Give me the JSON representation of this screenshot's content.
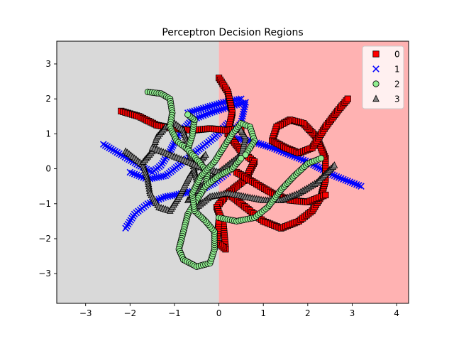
{
  "chart_data": {
    "type": "scatter",
    "title": "Perceptron Decision Regions",
    "xlabel": "",
    "ylabel": "",
    "xlim": [
      -3.65,
      4.27
    ],
    "ylim": [
      -3.85,
      3.65
    ],
    "xticks": [
      -3,
      -2,
      -1,
      0,
      1,
      2,
      3,
      4
    ],
    "yticks": [
      -3,
      -2,
      -1,
      0,
      1,
      2,
      3
    ],
    "decision_boundary_x": 0,
    "regions": [
      {
        "side": "left",
        "color": "#d9d9d9"
      },
      {
        "side": "right",
        "color": "#ffb2b2"
      }
    ],
    "legend_position": "top-right",
    "series": [
      {
        "name": "0",
        "marker": "square",
        "color": "#ff0000",
        "paths": [
          [
            [
              0.0,
              2.6
            ],
            [
              0.2,
              2.2
            ],
            [
              0.3,
              1.6
            ],
            [
              0.2,
              1.0
            ],
            [
              0.5,
              0.5
            ],
            [
              0.8,
              0.2
            ],
            [
              0.6,
              -0.3
            ],
            [
              0.2,
              -0.7
            ],
            [
              -0.05,
              -1.1
            ],
            [
              0.1,
              -1.6
            ],
            [
              0.15,
              -2.3
            ],
            [
              -0.05,
              -2.1
            ],
            [
              0.0,
              -1.5
            ]
          ],
          [
            [
              -2.2,
              1.65
            ],
            [
              -1.8,
              1.5
            ],
            [
              -1.4,
              1.25
            ],
            [
              -1.0,
              1.15
            ],
            [
              -0.6,
              1.1
            ],
            [
              -0.2,
              1.15
            ],
            [
              0.2,
              1.1
            ],
            [
              0.5,
              1.15
            ]
          ],
          [
            [
              0.3,
              -0.8
            ],
            [
              0.7,
              -1.2
            ],
            [
              1.0,
              -1.5
            ],
            [
              1.4,
              -1.7
            ],
            [
              1.8,
              -1.5
            ],
            [
              2.1,
              -1.2
            ],
            [
              2.3,
              -0.8
            ],
            [
              2.4,
              -0.3
            ],
            [
              2.4,
              0.3
            ],
            [
              2.2,
              0.9
            ],
            [
              1.9,
              1.3
            ],
            [
              1.6,
              1.4
            ],
            [
              1.3,
              1.2
            ],
            [
              1.2,
              0.8
            ]
          ],
          [
            [
              1.2,
              0.8
            ],
            [
              1.5,
              0.6
            ],
            [
              1.8,
              0.45
            ],
            [
              2.1,
              0.6
            ],
            [
              2.4,
              1.2
            ],
            [
              2.7,
              1.7
            ],
            [
              2.9,
              2.0
            ]
          ],
          [
            [
              0.4,
              -0.1
            ],
            [
              0.8,
              -0.4
            ],
            [
              1.2,
              -0.7
            ],
            [
              1.6,
              -0.9
            ],
            [
              2.0,
              -0.95
            ],
            [
              2.4,
              -0.75
            ]
          ]
        ]
      },
      {
        "name": "1",
        "marker": "x",
        "color": "#0000ff",
        "paths": [
          [
            [
              -2.6,
              0.7
            ],
            [
              -2.2,
              0.4
            ],
            [
              -1.8,
              0.1
            ],
            [
              -1.5,
              -0.1
            ],
            [
              -1.3,
              0.1
            ],
            [
              -1.1,
              0.5
            ],
            [
              -0.9,
              1.0
            ],
            [
              -0.6,
              1.4
            ],
            [
              -0.2,
              1.6
            ],
            [
              0.3,
              1.8
            ],
            [
              0.6,
              1.9
            ],
            [
              0.5,
              1.3
            ],
            [
              0.2,
              0.9
            ]
          ],
          [
            [
              0.2,
              0.9
            ],
            [
              0.7,
              0.8
            ],
            [
              1.2,
              0.6
            ],
            [
              1.6,
              0.4
            ],
            [
              2.0,
              0.2
            ],
            [
              2.3,
              0.0
            ],
            [
              2.6,
              -0.2
            ],
            [
              2.9,
              -0.35
            ],
            [
              3.2,
              -0.5
            ]
          ],
          [
            [
              -2.1,
              -1.7
            ],
            [
              -1.9,
              -1.3
            ],
            [
              -1.6,
              -1.0
            ],
            [
              -1.2,
              -0.8
            ],
            [
              -0.8,
              -0.7
            ],
            [
              -0.4,
              -0.6
            ],
            [
              -0.1,
              -0.4
            ],
            [
              0.2,
              -0.1
            ]
          ],
          [
            [
              -2.0,
              -0.1
            ],
            [
              -1.6,
              -0.3
            ],
            [
              -1.2,
              -0.2
            ],
            [
              -0.8,
              0.2
            ],
            [
              -0.4,
              0.6
            ],
            [
              -0.1,
              0.9
            ],
            [
              0.2,
              1.3
            ]
          ],
          [
            [
              -0.7,
              1.6
            ],
            [
              -0.3,
              1.75
            ],
            [
              0.1,
              1.9
            ],
            [
              0.5,
              2.0
            ]
          ]
        ]
      },
      {
        "name": "2",
        "marker": "circle",
        "color": "#90ee90",
        "paths": [
          [
            [
              -1.6,
              2.2
            ],
            [
              -1.3,
              2.15
            ],
            [
              -1.1,
              2.0
            ],
            [
              -1.05,
              1.6
            ],
            [
              -1.1,
              1.2
            ],
            [
              -0.95,
              0.8
            ],
            [
              -0.7,
              0.55
            ],
            [
              -0.6,
              0.95
            ],
            [
              -0.55,
              1.4
            ],
            [
              -0.7,
              1.55
            ]
          ],
          [
            [
              -0.7,
              0.55
            ],
            [
              -0.45,
              0.2
            ],
            [
              -0.25,
              -0.1
            ],
            [
              -0.3,
              -0.5
            ],
            [
              -0.5,
              -0.9
            ],
            [
              -0.7,
              -1.3
            ],
            [
              -0.8,
              -1.8
            ],
            [
              -0.9,
              -2.3
            ],
            [
              -0.8,
              -2.6
            ],
            [
              -0.5,
              -2.8
            ],
            [
              -0.2,
              -2.7
            ],
            [
              -0.1,
              -2.3
            ],
            [
              -0.1,
              -1.8
            ]
          ],
          [
            [
              -0.1,
              -1.8
            ],
            [
              -0.3,
              -1.5
            ],
            [
              -0.55,
              -1.2
            ],
            [
              -0.6,
              -0.7
            ],
            [
              -0.4,
              -0.2
            ],
            [
              -0.1,
              0.2
            ],
            [
              0.1,
              0.6
            ],
            [
              0.3,
              1.0
            ],
            [
              0.5,
              1.3
            ],
            [
              0.7,
              1.2
            ],
            [
              0.8,
              0.8
            ],
            [
              0.6,
              0.4
            ]
          ],
          [
            [
              0.0,
              -1.4
            ],
            [
              0.4,
              -1.5
            ],
            [
              0.8,
              -1.4
            ],
            [
              1.1,
              -1.1
            ],
            [
              1.4,
              -0.6
            ],
            [
              1.7,
              -0.2
            ],
            [
              2.0,
              0.15
            ],
            [
              2.3,
              0.3
            ]
          ],
          [
            [
              -0.3,
              -0.5
            ],
            [
              0.0,
              -0.2
            ],
            [
              0.3,
              0.0
            ],
            [
              0.5,
              0.3
            ]
          ]
        ]
      },
      {
        "name": "3",
        "marker": "triangle",
        "color": "#808080",
        "paths": [
          [
            [
              -2.1,
              0.5
            ],
            [
              -1.9,
              0.3
            ],
            [
              -1.7,
              0.1
            ],
            [
              -1.6,
              -0.3
            ],
            [
              -1.55,
              -0.7
            ],
            [
              -1.35,
              -1.1
            ],
            [
              -1.1,
              -1.2
            ],
            [
              -0.9,
              -0.8
            ],
            [
              -0.7,
              -0.3
            ],
            [
              -0.5,
              0.1
            ],
            [
              -0.3,
              0.4
            ]
          ],
          [
            [
              -1.7,
              0.2
            ],
            [
              -1.5,
              0.5
            ],
            [
              -1.4,
              0.9
            ],
            [
              -1.2,
              1.2
            ],
            [
              -1.0,
              1.3
            ],
            [
              -0.8,
              1.1
            ],
            [
              -0.7,
              0.7
            ],
            [
              -0.6,
              0.2
            ],
            [
              -0.5,
              -0.3
            ],
            [
              -0.45,
              -0.7
            ],
            [
              -0.5,
              -1.1
            ]
          ],
          [
            [
              -0.5,
              -1.1
            ],
            [
              -0.2,
              -0.8
            ],
            [
              0.2,
              -0.7
            ],
            [
              0.6,
              -0.8
            ],
            [
              1.0,
              -0.9
            ],
            [
              1.4,
              -0.9
            ],
            [
              1.8,
              -0.7
            ],
            [
              2.2,
              -0.4
            ],
            [
              2.6,
              0.1
            ]
          ],
          [
            [
              -0.7,
              -0.9
            ],
            [
              -0.4,
              -0.5
            ],
            [
              -0.1,
              -0.2
            ],
            [
              0.2,
              0.1
            ],
            [
              0.5,
              0.4
            ],
            [
              0.6,
              0.9
            ],
            [
              0.5,
              1.1
            ]
          ],
          [
            [
              -1.5,
              0.6
            ],
            [
              -1.1,
              0.4
            ],
            [
              -0.7,
              0.2
            ],
            [
              -0.3,
              0.0
            ],
            [
              0.0,
              -0.1
            ]
          ]
        ]
      }
    ]
  }
}
